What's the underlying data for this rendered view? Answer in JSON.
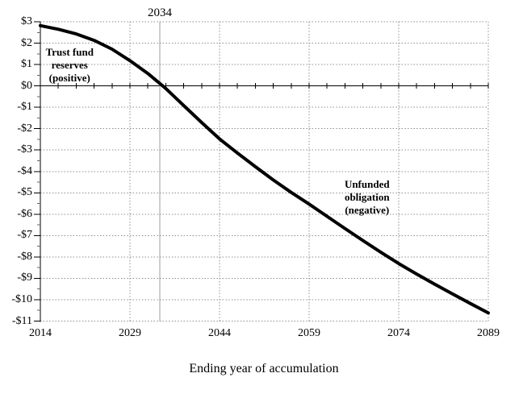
{
  "colors": {
    "background": "#ffffff",
    "series_line": "#000000",
    "grid": "#8f8f8f",
    "depletion_line": "#9c9c9c",
    "axis": "#000000"
  },
  "chart_data": {
    "type": "line",
    "title": "",
    "xlabel": "Ending year of accumulation",
    "ylabel": "",
    "xlim": [
      2014,
      2089
    ],
    "ylim": [
      -11,
      3
    ],
    "grid": "dotted gray horizontal every $1 and vertical every 15 years",
    "legend": "none",
    "x_ticks": [
      2014,
      2029,
      2044,
      2059,
      2074,
      2089
    ],
    "x_minor_tick_step_years": 3,
    "y_ticks": [
      {
        "label": "$3",
        "value": 3
      },
      {
        "label": "$2",
        "value": 2
      },
      {
        "label": "$1",
        "value": 1
      },
      {
        "label": "$0",
        "value": 0
      },
      {
        "label": "-$1",
        "value": -1
      },
      {
        "label": "-$2",
        "value": -2
      },
      {
        "label": "-$3",
        "value": -3
      },
      {
        "label": "-$4",
        "value": -4
      },
      {
        "label": "-$5",
        "value": -5
      },
      {
        "label": "-$6",
        "value": -6
      },
      {
        "label": "-$7",
        "value": -7
      },
      {
        "label": "-$8",
        "value": -8
      },
      {
        "label": "-$9",
        "value": -9
      },
      {
        "label": "-$10",
        "value": -10
      },
      {
        "label": "-$11",
        "value": -11
      }
    ],
    "depletion_marker": {
      "year": 2034,
      "label": "2034",
      "style": "solid gray vertical line"
    },
    "series": [
      {
        "name": "trust-fund-balance",
        "x": [
          2014,
          2017,
          2020,
          2023,
          2026,
          2029,
          2032,
          2035,
          2038,
          2041,
          2044,
          2047,
          2050,
          2053,
          2056,
          2059,
          2062,
          2065,
          2068,
          2071,
          2074,
          2077,
          2080,
          2083,
          2086,
          2089
        ],
        "y": [
          2.82,
          2.65,
          2.43,
          2.13,
          1.72,
          1.18,
          0.58,
          -0.12,
          -0.92,
          -1.71,
          -2.48,
          -3.14,
          -3.78,
          -4.4,
          -4.98,
          -5.53,
          -6.1,
          -6.67,
          -7.23,
          -7.78,
          -8.31,
          -8.8,
          -9.27,
          -9.73,
          -10.18,
          -10.62
        ]
      }
    ],
    "annotations": [
      {
        "text": "Trust fund\nreserves\n(positive)",
        "near_year": 2018.9,
        "near_value": 0.97
      },
      {
        "text": "Unfunded\nobligation\n(negative)",
        "near_year": 2068.7,
        "near_value": -5.2
      }
    ]
  }
}
